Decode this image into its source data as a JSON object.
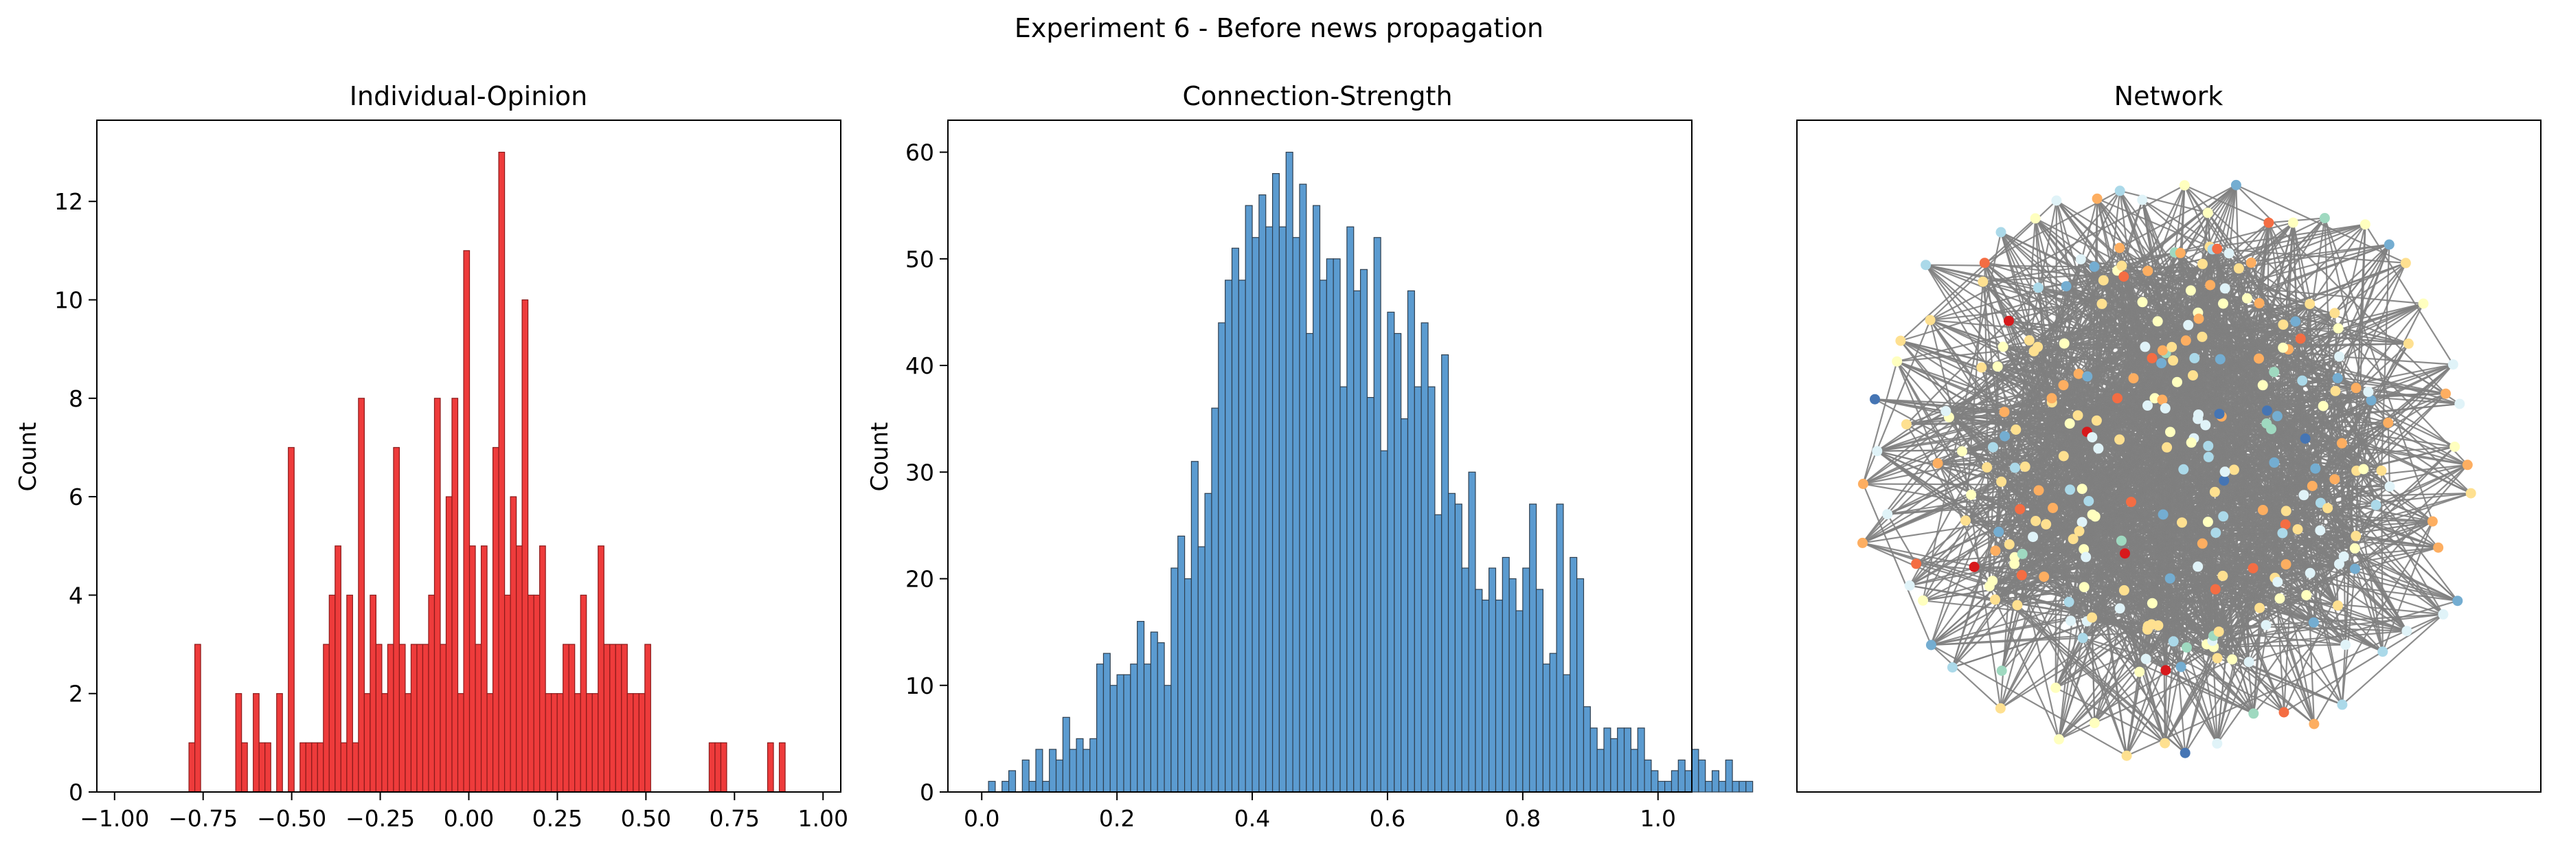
{
  "figure": {
    "suptitle": "Experiment 6 - Before news propagation"
  },
  "chart_data": [
    {
      "type": "histogram",
      "title": "Individual-Opinion",
      "xlabel": "",
      "ylabel": "Count",
      "xlim": [
        -1.05,
        1.05
      ],
      "ylim": [
        0,
        13.65
      ],
      "x_ticks": [
        -1.0,
        -0.75,
        -0.5,
        -0.25,
        0.0,
        0.25,
        0.5,
        0.75,
        1.0
      ],
      "x_tick_labels": [
        "−1.00",
        "−0.75",
        "−0.50",
        "−0.25",
        "0.00",
        "0.25",
        "0.50",
        "0.75",
        "1.00"
      ],
      "y_ticks": [
        0,
        2,
        4,
        6,
        8,
        10,
        12
      ],
      "y_tick_labels": [
        "0",
        "2",
        "4",
        "6",
        "8",
        "10",
        "12"
      ],
      "bar_color": "#ee3b3b",
      "edge_color": "#8a1a1a",
      "bins": {
        "start": -0.79,
        "width": 0.0165,
        "counts": [
          1,
          3,
          0,
          0,
          0,
          0,
          0,
          0,
          2,
          1,
          0,
          2,
          1,
          1,
          0,
          2,
          0,
          7,
          0,
          1,
          1,
          1,
          1,
          3,
          4,
          5,
          1,
          4,
          1,
          8,
          2,
          4,
          3,
          2,
          3,
          7,
          3,
          2,
          3,
          3,
          3,
          4,
          8,
          3,
          6,
          8,
          2,
          11,
          5,
          3,
          5,
          2,
          7,
          13,
          4,
          6,
          5,
          10,
          4,
          4,
          5,
          2,
          2,
          2,
          3,
          3,
          2,
          4,
          2,
          2,
          5,
          3,
          3,
          3,
          3,
          2,
          2,
          2,
          3,
          0,
          0,
          0,
          0,
          0,
          0,
          0,
          0,
          0,
          0,
          1,
          1,
          1,
          0,
          0,
          0,
          0,
          0,
          0,
          0,
          1,
          0,
          1
        ]
      }
    },
    {
      "type": "histogram",
      "title": "Connection-Strength",
      "xlabel": "",
      "ylabel": "Count",
      "xlim": [
        -0.05,
        1.05
      ],
      "ylim": [
        0,
        63
      ],
      "x_ticks": [
        0.0,
        0.2,
        0.4,
        0.6,
        0.8,
        1.0
      ],
      "x_tick_labels": [
        "0.0",
        "0.2",
        "0.4",
        "0.6",
        "0.8",
        "1.0"
      ],
      "y_ticks": [
        0,
        10,
        20,
        30,
        40,
        50,
        60
      ],
      "y_tick_labels": [
        "0",
        "10",
        "20",
        "30",
        "40",
        "50",
        "60"
      ],
      "bar_color": "#5b9bd0",
      "edge_color": "#2f3f4f",
      "bins": {
        "start": 0.0,
        "width": 0.01,
        "counts": [
          0,
          1,
          0,
          1,
          2,
          0,
          3,
          1,
          4,
          1,
          4,
          3,
          7,
          4,
          5,
          4,
          5,
          12,
          13,
          10,
          11,
          11,
          12,
          16,
          12,
          15,
          14,
          10,
          21,
          24,
          20,
          31,
          23,
          28,
          36,
          44,
          48,
          51,
          48,
          55,
          52,
          56,
          53,
          58,
          53,
          60,
          52,
          57,
          43,
          55,
          48,
          50,
          50,
          38,
          53,
          47,
          49,
          37,
          52,
          32,
          45,
          43,
          35,
          47,
          38,
          44,
          38,
          26,
          41,
          28,
          27,
          21,
          30,
          19,
          18,
          21,
          18,
          22,
          20,
          17,
          21,
          27,
          19,
          12,
          13,
          27,
          11,
          22,
          20,
          8,
          6,
          4,
          6,
          5,
          6,
          6,
          4,
          6,
          3,
          2,
          1,
          1,
          2,
          3,
          2,
          4,
          3,
          1,
          2,
          1,
          3,
          1,
          1,
          1
        ]
      }
    },
    {
      "type": "network",
      "title": "Network",
      "node_palette": [
        "#d7191c",
        "#f46d43",
        "#fdae61",
        "#fee090",
        "#ffffbf",
        "#e0f3f8",
        "#abd9e9",
        "#74add1",
        "#4575b4",
        "#9fd9c0"
      ],
      "edge_color": "#808080",
      "axes_visible": false
    }
  ]
}
